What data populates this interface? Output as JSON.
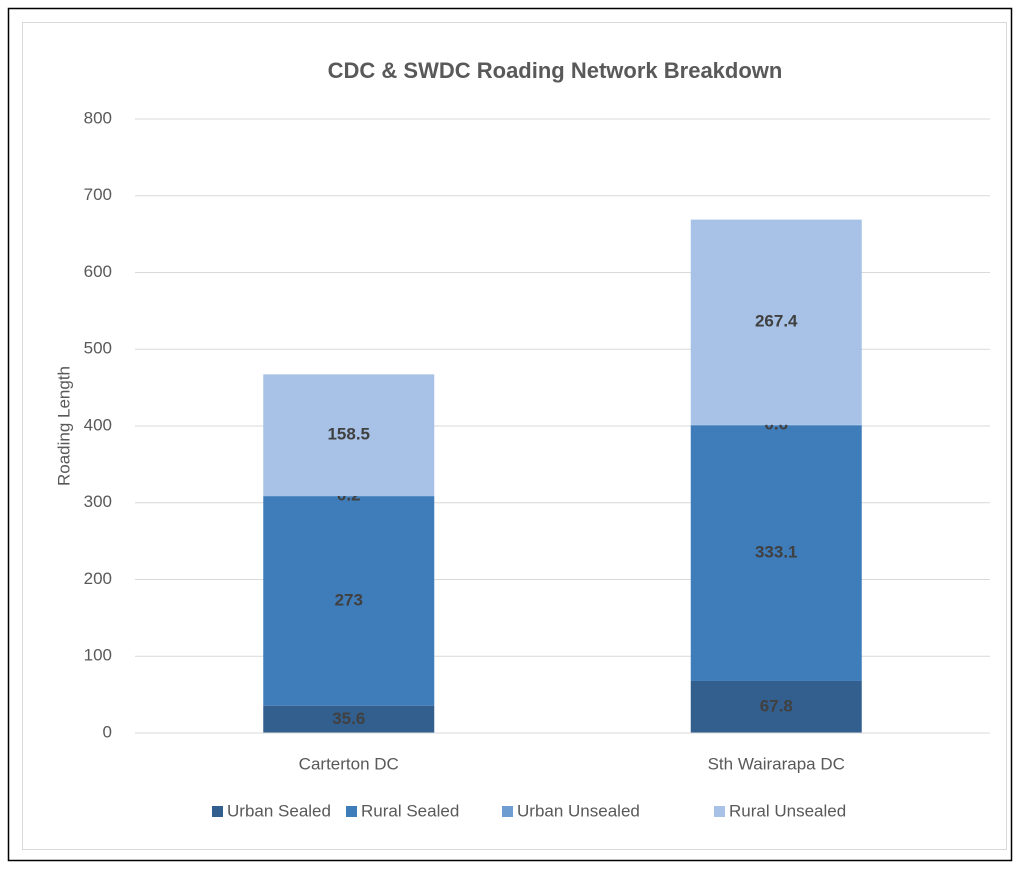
{
  "chart_data": {
    "type": "stacked_bar",
    "title": "CDC & SWDC Roading Network Breakdown",
    "y_label": "Roading Length",
    "categories": [
      "Carterton DC",
      "Sth Wairarapa DC"
    ],
    "series": [
      {
        "name": "Urban Sealed",
        "color": "#335f8e",
        "values": [
          35.6,
          67.8
        ]
      },
      {
        "name": "Rural Sealed",
        "color": "#3f7cba",
        "values": [
          273,
          333.1
        ]
      },
      {
        "name": "Urban Unsealed",
        "color": "#6e9dd2",
        "values": [
          0.2,
          0.6
        ]
      },
      {
        "name": "Rural Unsealed",
        "color": "#a7c2e6",
        "values": [
          158.5,
          267.4
        ]
      }
    ],
    "ylim": [
      0,
      800
    ],
    "yticks": [
      0,
      100,
      200,
      300,
      400,
      500,
      600,
      700,
      800
    ],
    "grid": true,
    "legend": "bottom"
  }
}
